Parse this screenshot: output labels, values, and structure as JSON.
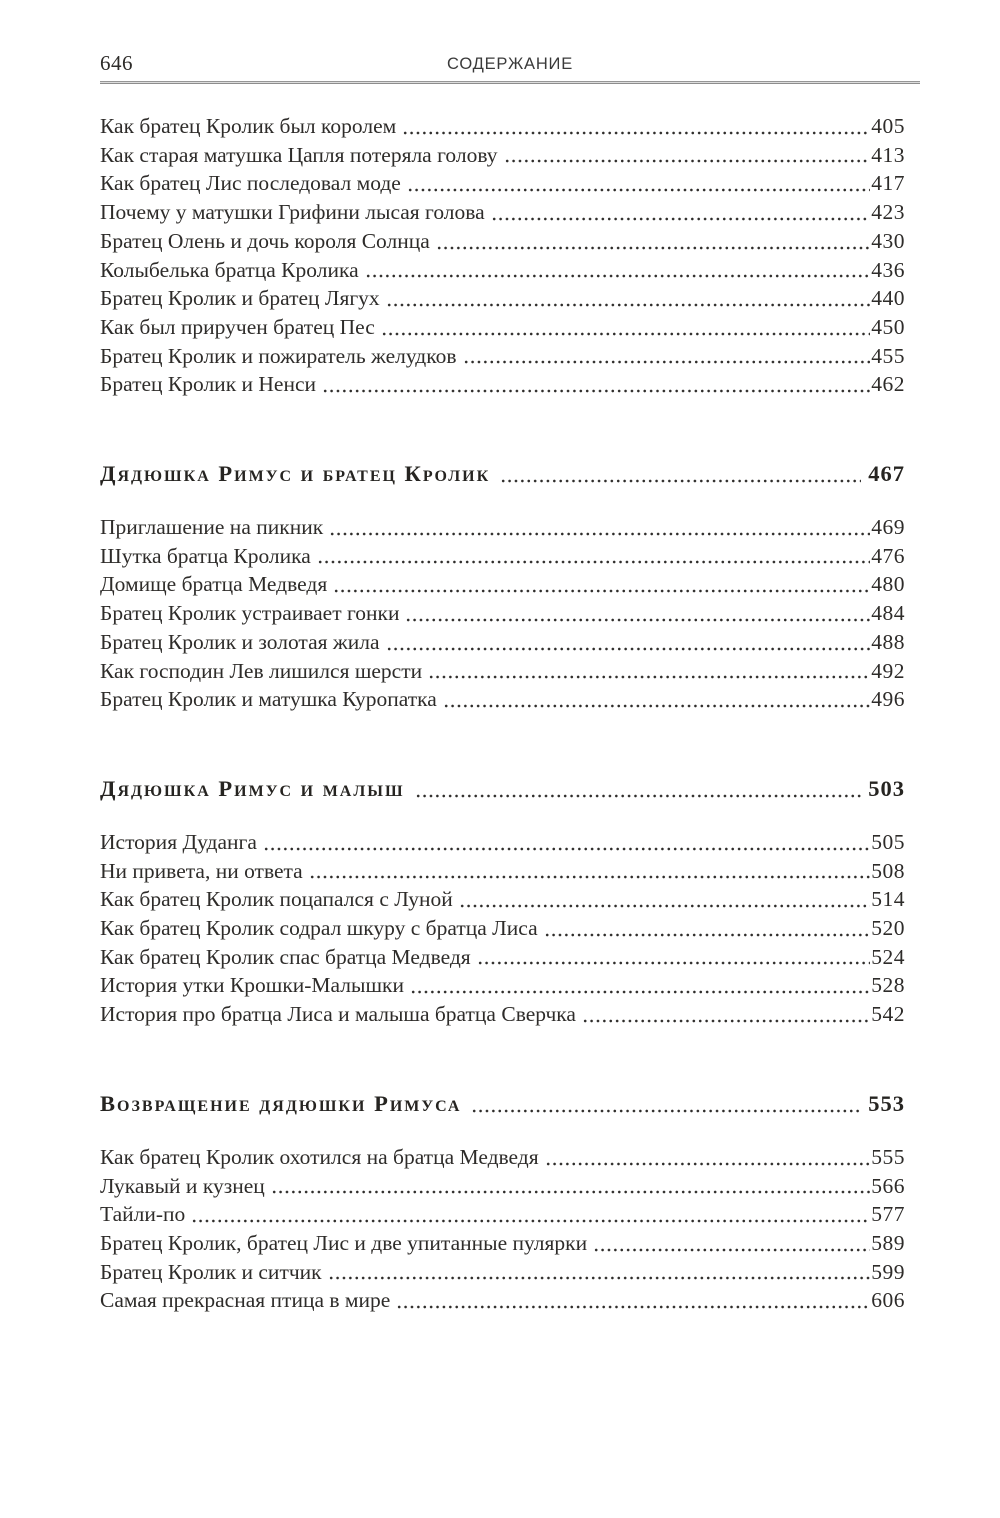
{
  "theme": {
    "paper": "#ffffff",
    "ink": "#2e2c2a",
    "rule": "#8d8d8d"
  },
  "page": {
    "number": "646",
    "running_head": "СОДЕРЖАНИЕ"
  },
  "toc": {
    "groups": [
      {
        "entries": [
          {
            "title": "Как братец Кролик был королем",
            "page": "405"
          },
          {
            "title": "Как старая матушка Цапля потеряла голову",
            "page": "413"
          },
          {
            "title": "Как братец Лис последовал моде",
            "page": "417"
          },
          {
            "title": "Почему у матушки Грифини лысая голова",
            "page": "423"
          },
          {
            "title": "Братец Олень и дочь короля Солнца",
            "page": "430"
          },
          {
            "title": "Колыбелька братца Кролика",
            "page": "436"
          },
          {
            "title": "Братец Кролик и братец Лягух",
            "page": "440"
          },
          {
            "title": "Как был приручен братец Пес",
            "page": "450"
          },
          {
            "title": "Братец Кролик и пожиратель желудков",
            "page": "455"
          },
          {
            "title": "Братец Кролик и Ненси",
            "page": "462"
          }
        ]
      },
      {
        "heading": {
          "title": "Дядюшка Римус и братец Кролик",
          "page": "467"
        },
        "entries": [
          {
            "title": "Приглашение на пикник",
            "page": "469"
          },
          {
            "title": "Шутка братца Кролика",
            "page": "476"
          },
          {
            "title": "Домище братца Медведя",
            "page": "480"
          },
          {
            "title": "Братец Кролик устраивает гонки",
            "page": "484"
          },
          {
            "title": "Братец Кролик и золотая жила",
            "page": "488"
          },
          {
            "title": "Как господин Лев лишился шерсти",
            "page": "492"
          },
          {
            "title": "Братец Кролик и матушка Куропатка",
            "page": "496"
          }
        ]
      },
      {
        "heading": {
          "title": "Дядюшка Римус и малыш",
          "page": "503"
        },
        "entries": [
          {
            "title": "История Дуданга",
            "page": "505"
          },
          {
            "title": "Ни привета, ни ответа",
            "page": "508"
          },
          {
            "title": "Как братец Кролик поцапался с Луной",
            "page": "514"
          },
          {
            "title": "Как братец Кролик содрал шкуру с братца Лиса",
            "page": "520"
          },
          {
            "title": "Как братец Кролик спас братца Медведя",
            "page": "524"
          },
          {
            "title": "История утки Крошки-Малышки",
            "page": "528"
          },
          {
            "title": "История про братца Лиса и малыша братца Сверчка",
            "page": "542"
          }
        ]
      },
      {
        "heading": {
          "title": "Возвращение дядюшки Римуса",
          "page": "553"
        },
        "entries": [
          {
            "title": "Как братец Кролик охотился на братца Медведя",
            "page": "555"
          },
          {
            "title": "Лукавый и кузнец",
            "page": "566"
          },
          {
            "title": "Тайли-по",
            "page": "577"
          },
          {
            "title": "Братец Кролик, братец Лис и две упитанные пулярки",
            "page": "589"
          },
          {
            "title": "Братец Кролик и ситчик",
            "page": "599"
          },
          {
            "title": "Самая прекрасная птица в мире",
            "page": "606"
          }
        ]
      }
    ]
  }
}
